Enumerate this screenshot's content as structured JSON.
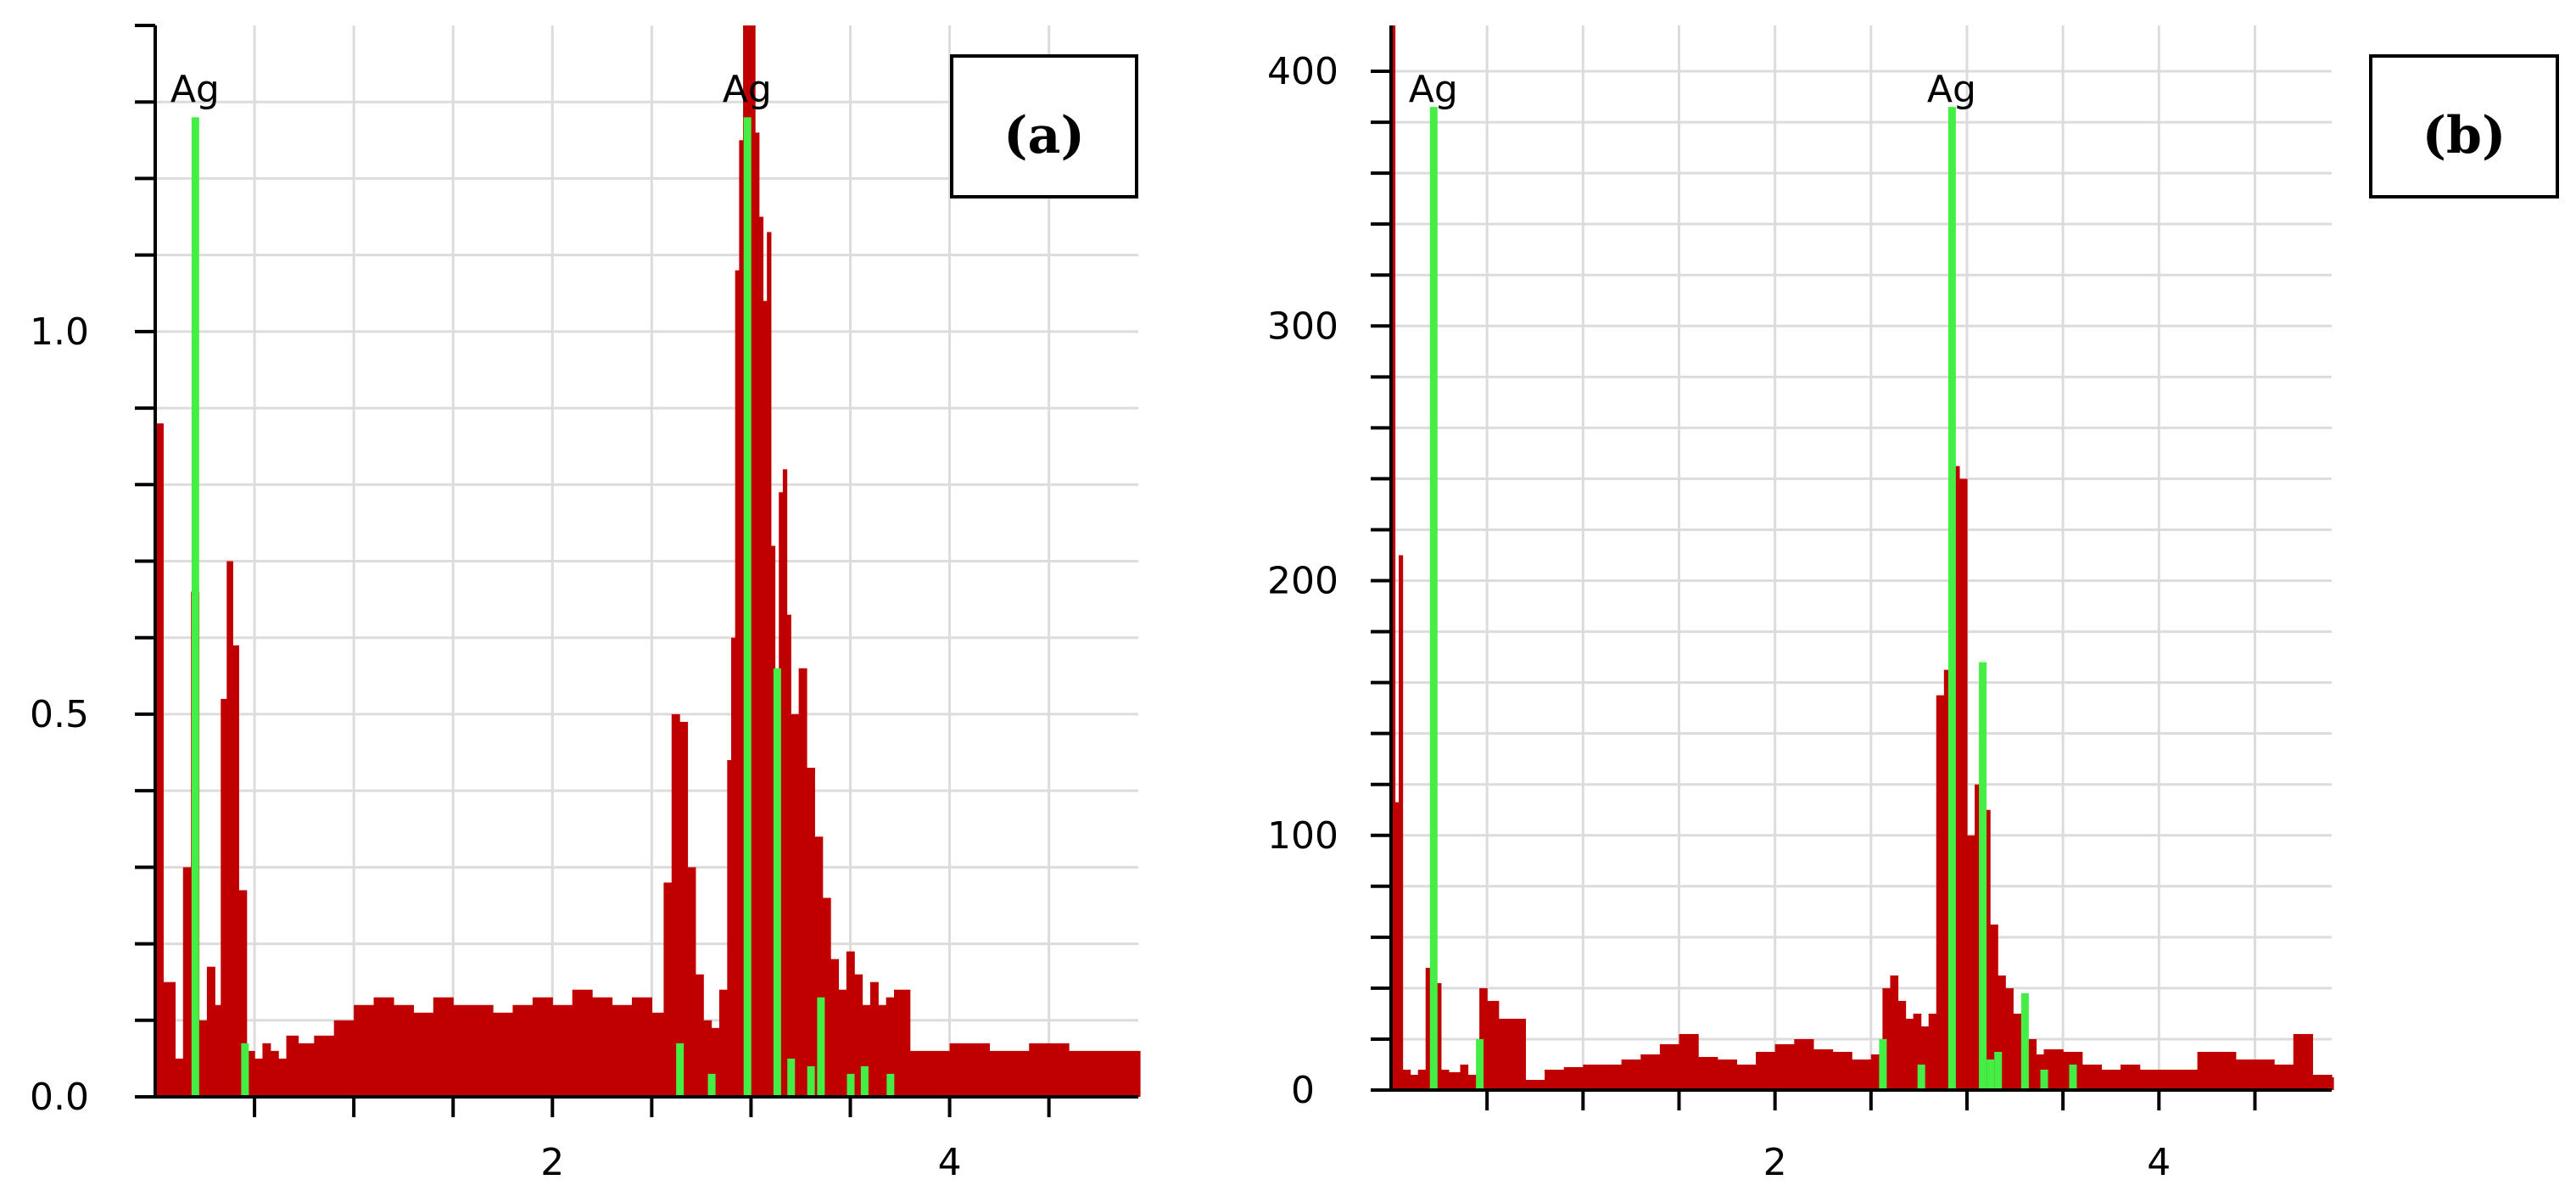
{
  "colors": {
    "spectrum": "#c00000",
    "marker": "#44ee44",
    "grid": "#dcdcdc",
    "axis": "#000000"
  },
  "chart_data": [
    {
      "type": "bar",
      "title": "",
      "xlabel": "",
      "ylabel": "",
      "panel_tag": "(a)",
      "xlim": [
        0,
        4.95
      ],
      "ylim": [
        0,
        1.4
      ],
      "x_ticks": [
        2,
        4
      ],
      "x_tick_labels": [
        "2",
        "4"
      ],
      "y_ticks": [
        0.0,
        0.5,
        1.0
      ],
      "y_tick_labels": [
        "0.0",
        "0.5",
        "1.0"
      ],
      "grid": true,
      "peak_labels": [
        {
          "text": "Ag",
          "x": 0.2
        },
        {
          "text": "Ag",
          "x": 2.98
        }
      ],
      "series": [
        {
          "kind": "spectrum",
          "x": [
            0.0,
            0.04,
            0.1,
            0.14,
            0.18,
            0.22,
            0.26,
            0.3,
            0.33,
            0.36,
            0.39,
            0.42,
            0.46,
            0.5,
            0.54,
            0.58,
            0.62,
            0.66,
            0.72,
            0.8,
            0.9,
            1.0,
            1.1,
            1.2,
            1.3,
            1.4,
            1.5,
            1.6,
            1.7,
            1.8,
            1.9,
            2.0,
            2.1,
            2.2,
            2.3,
            2.4,
            2.5,
            2.56,
            2.6,
            2.64,
            2.68,
            2.72,
            2.76,
            2.8,
            2.84,
            2.88,
            2.9,
            2.92,
            2.94,
            2.96,
            2.98,
            3.0,
            3.02,
            3.04,
            3.06,
            3.08,
            3.1,
            3.12,
            3.14,
            3.16,
            3.18,
            3.2,
            3.24,
            3.28,
            3.32,
            3.36,
            3.4,
            3.44,
            3.48,
            3.52,
            3.56,
            3.6,
            3.64,
            3.68,
            3.72,
            3.8,
            3.9,
            4.0,
            4.2,
            4.4,
            4.6,
            4.8,
            4.95
          ],
          "values": [
            0.88,
            0.15,
            0.05,
            0.3,
            0.66,
            0.1,
            0.17,
            0.12,
            0.52,
            0.7,
            0.59,
            0.27,
            0.06,
            0.05,
            0.07,
            0.06,
            0.05,
            0.08,
            0.07,
            0.08,
            0.1,
            0.12,
            0.13,
            0.12,
            0.11,
            0.13,
            0.12,
            0.12,
            0.11,
            0.12,
            0.13,
            0.12,
            0.14,
            0.13,
            0.12,
            0.13,
            0.11,
            0.28,
            0.5,
            0.49,
            0.3,
            0.16,
            0.1,
            0.09,
            0.14,
            0.44,
            0.6,
            1.08,
            1.25,
            1.58,
            1.58,
            1.45,
            1.26,
            1.15,
            1.04,
            1.13,
            0.72,
            0.55,
            0.79,
            0.82,
            0.63,
            0.5,
            0.56,
            0.43,
            0.34,
            0.26,
            0.18,
            0.14,
            0.19,
            0.16,
            0.12,
            0.15,
            0.12,
            0.13,
            0.14,
            0.06,
            0.06,
            0.07,
            0.06,
            0.07,
            0.06,
            0.06,
            0.06
          ]
        },
        {
          "kind": "reference-lines",
          "x": [
            0.2,
            0.45,
            2.64,
            2.8,
            2.98,
            3.13,
            3.2,
            3.3,
            3.35,
            3.5,
            3.57,
            3.7
          ],
          "values": [
            1.28,
            0.07,
            0.07,
            0.03,
            1.28,
            0.56,
            0.05,
            0.04,
            0.13,
            0.03,
            0.04,
            0.03
          ]
        }
      ]
    },
    {
      "type": "bar",
      "title": "",
      "xlabel": "",
      "ylabel": "",
      "panel_tag": "(b)",
      "xlim": [
        0,
        4.9
      ],
      "ylim": [
        0,
        418
      ],
      "x_ticks": [
        2,
        4
      ],
      "x_tick_labels": [
        "2",
        "4"
      ],
      "y_ticks": [
        0,
        100,
        200,
        300,
        400
      ],
      "y_tick_labels": [
        "0",
        "100",
        "200",
        "300",
        "400"
      ],
      "grid": true,
      "peak_labels": [
        {
          "text": "Ag",
          "x": 0.22
        },
        {
          "text": "Ag",
          "x": 2.92
        }
      ],
      "series": [
        {
          "kind": "spectrum",
          "x": [
            0.0,
            0.02,
            0.04,
            0.06,
            0.1,
            0.14,
            0.18,
            0.22,
            0.26,
            0.3,
            0.36,
            0.4,
            0.46,
            0.5,
            0.56,
            0.7,
            0.8,
            0.9,
            1.0,
            1.1,
            1.2,
            1.3,
            1.4,
            1.5,
            1.6,
            1.7,
            1.8,
            1.9,
            2.0,
            2.1,
            2.2,
            2.3,
            2.4,
            2.5,
            2.56,
            2.6,
            2.64,
            2.68,
            2.72,
            2.76,
            2.8,
            2.84,
            2.88,
            2.92,
            2.96,
            3.0,
            3.04,
            3.08,
            3.12,
            3.16,
            3.2,
            3.24,
            3.3,
            3.36,
            3.4,
            3.5,
            3.6,
            3.7,
            3.8,
            3.9,
            4.0,
            4.2,
            4.4,
            4.6,
            4.7,
            4.8,
            4.9
          ],
          "values": [
            418,
            113,
            210,
            8,
            6,
            8,
            48,
            42,
            8,
            7,
            10,
            6,
            40,
            35,
            28,
            4,
            8,
            9,
            10,
            10,
            12,
            14,
            18,
            22,
            13,
            12,
            10,
            15,
            18,
            20,
            16,
            15,
            12,
            14,
            40,
            45,
            35,
            28,
            30,
            25,
            30,
            155,
            165,
            245,
            240,
            100,
            120,
            110,
            65,
            45,
            40,
            30,
            20,
            14,
            16,
            15,
            10,
            8,
            10,
            8,
            8,
            15,
            12,
            10,
            22,
            6,
            5
          ]
        },
        {
          "kind": "reference-lines",
          "x": [
            0.22,
            0.46,
            2.56,
            2.76,
            2.92,
            3.08,
            3.12,
            3.16,
            3.3,
            3.4,
            3.55
          ],
          "values": [
            386,
            20,
            20,
            10,
            386,
            168,
            12,
            15,
            38,
            8,
            10
          ]
        }
      ]
    }
  ]
}
